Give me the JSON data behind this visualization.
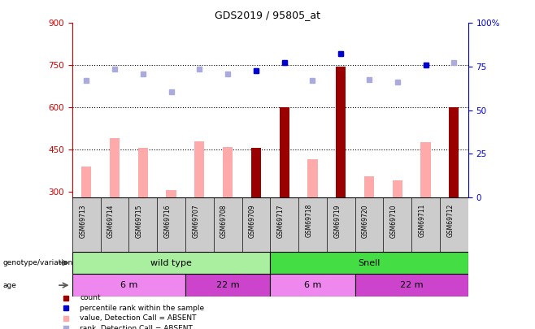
{
  "title": "GDS2019 / 95805_at",
  "samples": [
    "GSM69713",
    "GSM69714",
    "GSM69715",
    "GSM69716",
    "GSM69707",
    "GSM69708",
    "GSM69709",
    "GSM69717",
    "GSM69718",
    "GSM69719",
    "GSM69720",
    "GSM69710",
    "GSM69711",
    "GSM69712"
  ],
  "value_bars": [
    390,
    490,
    455,
    305,
    480,
    460,
    455,
    600,
    415,
    745,
    355,
    340,
    475,
    600
  ],
  "count_bars": [
    null,
    null,
    null,
    null,
    null,
    null,
    455,
    600,
    null,
    745,
    null,
    null,
    null,
    600
  ],
  "rank_dots": [
    695,
    735,
    720,
    655,
    735,
    720,
    730,
    760,
    695,
    790,
    700,
    690,
    750,
    760
  ],
  "percentile_dots": [
    null,
    null,
    null,
    null,
    null,
    null,
    730,
    760,
    null,
    790,
    null,
    null,
    750,
    null
  ],
  "ylim_left": [
    280,
    900
  ],
  "ylim_right": [
    0,
    100
  ],
  "yticks_left": [
    300,
    450,
    600,
    750,
    900
  ],
  "yticks_right": [
    0,
    25,
    50,
    75,
    100
  ],
  "hlines": [
    450,
    600,
    750
  ],
  "bar_color_value": "#ffaaaa",
  "bar_color_count": "#990000",
  "dot_color_rank": "#aaaadd",
  "dot_color_percentile": "#0000cc",
  "left_axis_color": "#cc0000",
  "right_axis_color": "#0000cc",
  "genotype_groups": [
    {
      "label": "wild type",
      "start": 0,
      "end": 7,
      "color": "#aaeea0"
    },
    {
      "label": "Snell",
      "start": 7,
      "end": 14,
      "color": "#44dd44"
    }
  ],
  "age_groups": [
    {
      "label": "6 m",
      "start": 0,
      "end": 4,
      "color": "#ee88ee"
    },
    {
      "label": "22 m",
      "start": 4,
      "end": 7,
      "color": "#cc44cc"
    },
    {
      "label": "6 m",
      "start": 7,
      "end": 10,
      "color": "#ee88ee"
    },
    {
      "label": "22 m",
      "start": 10,
      "end": 14,
      "color": "#cc44cc"
    }
  ],
  "legend_items": [
    {
      "label": "count",
      "color": "#990000"
    },
    {
      "label": "percentile rank within the sample",
      "color": "#0000cc"
    },
    {
      "label": "value, Detection Call = ABSENT",
      "color": "#ffaaaa"
    },
    {
      "label": "rank, Detection Call = ABSENT",
      "color": "#aaaadd"
    }
  ]
}
